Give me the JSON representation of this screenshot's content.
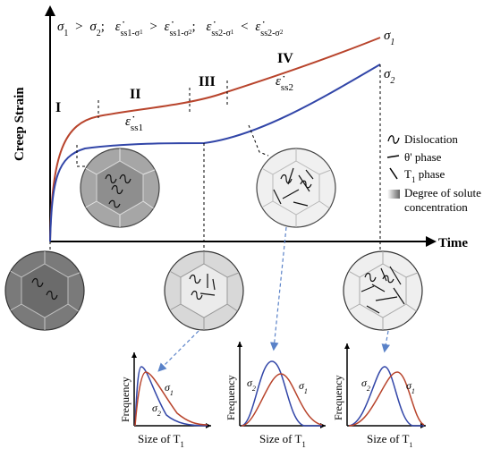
{
  "header": {
    "s1": "σ",
    "s1_sub": "1",
    "gt": ">",
    "s2": "σ",
    "s2_sub": "2",
    "sep1": ";",
    "e1": "ε̇",
    "e1_sub": "ss1-σ",
    "e1_sub2": "1",
    "gt2": ">",
    "e2": "ε̇",
    "e2_sub": "ss1-σ",
    "e2_sub2": "2",
    "sep2": ";",
    "e3": "ε̇",
    "e3_sub": "ss2-σ",
    "e3_sub2": "1",
    "lt": "<",
    "e4": "ε̇",
    "e4_sub": "ss2-σ",
    "e4_sub2": "2"
  },
  "axes": {
    "y_label": "Creep Strain",
    "x_label": "Time"
  },
  "stages": {
    "i": "I",
    "ii": "II",
    "iii": "III",
    "iv": "IV"
  },
  "rates": {
    "ss1": "ε̇",
    "ss1_sub": "ss1",
    "ss2": "ε̇",
    "ss2_sub": "ss2"
  },
  "curve_labels": {
    "s1": "σ",
    "s1_sub": "1",
    "s2": "σ",
    "s2_sub": "2"
  },
  "colors": {
    "sigma1": "#b8442c",
    "sigma2": "#3246a8"
  },
  "legend": [
    {
      "icon": "dislocation-icon",
      "label": "Dislocation"
    },
    {
      "icon": "theta-phase-icon",
      "label": "θ' phase"
    },
    {
      "icon": "t1-phase-icon",
      "label": "T",
      "sub": "1",
      "suffix": " phase"
    },
    {
      "icon": "solute-gradient-icon",
      "label": "Degree of solute",
      "label2": "concentration"
    }
  ],
  "distributions": {
    "y_label": "Frequency",
    "x_label": "Size of T",
    "x_label_sub": "1",
    "s1": "σ",
    "s1_sub": "1",
    "s2": "σ",
    "s2_sub": "2"
  }
}
